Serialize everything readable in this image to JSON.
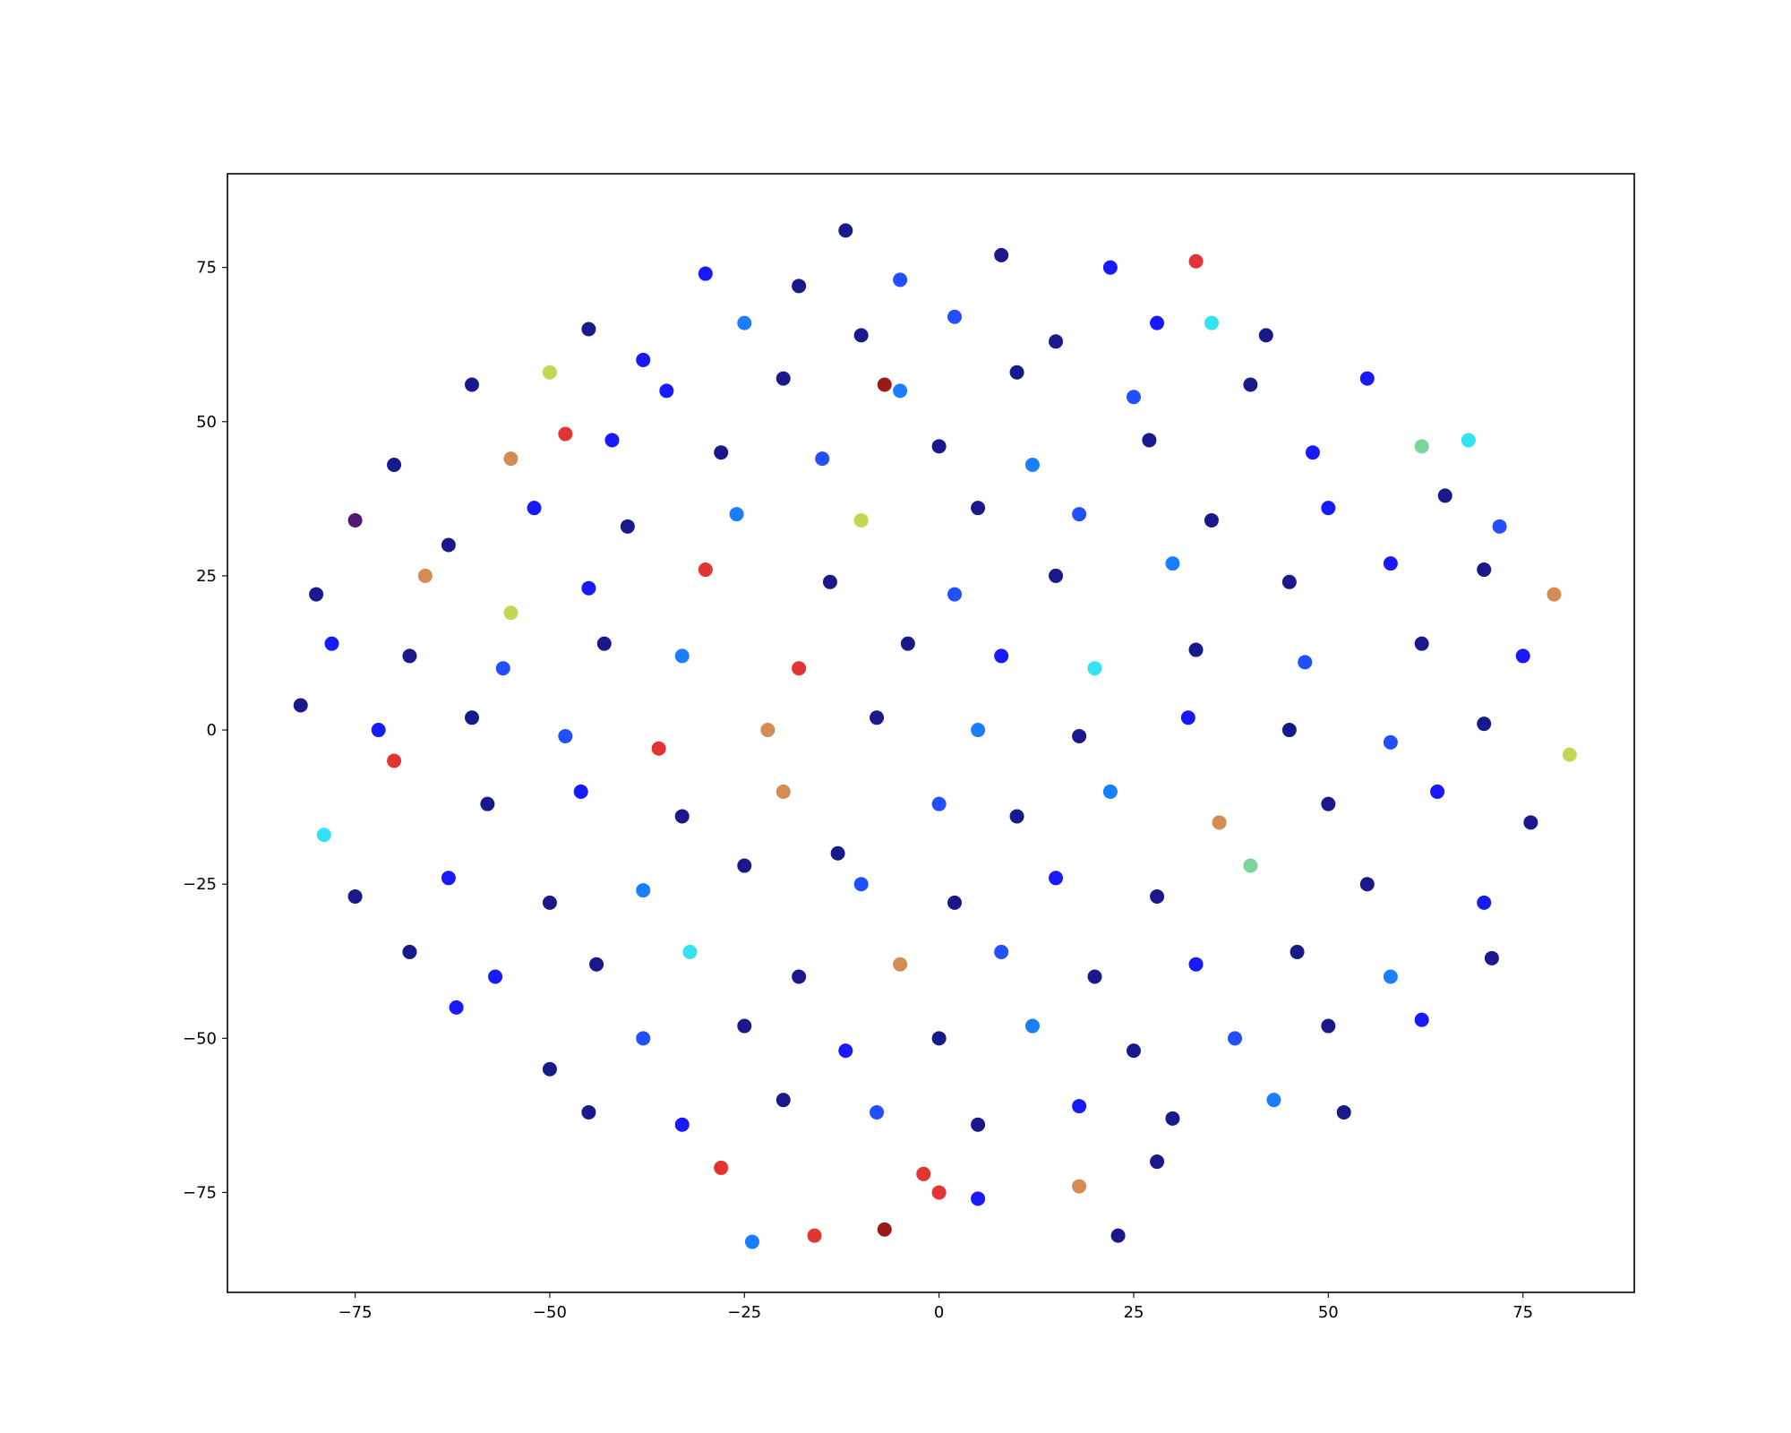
{
  "chart_data": {
    "type": "scatter",
    "x": [
      -12,
      -30,
      -18,
      -5,
      8,
      22,
      33,
      -45,
      -38,
      -25,
      -10,
      2,
      15,
      28,
      42,
      35,
      -60,
      -50,
      -35,
      -20,
      -5,
      10,
      25,
      40,
      55,
      -7,
      -70,
      -55,
      -42,
      -28,
      -15,
      0,
      12,
      27,
      48,
      62,
      68,
      -48,
      -75,
      -63,
      -52,
      -40,
      -26,
      -10,
      5,
      18,
      35,
      50,
      65,
      72,
      -80,
      -66,
      -55,
      -45,
      -30,
      -14,
      2,
      15,
      30,
      45,
      58,
      70,
      79,
      -78,
      -68,
      -56,
      -43,
      -33,
      -18,
      -4,
      8,
      20,
      33,
      47,
      62,
      75,
      -82,
      -72,
      -60,
      -48,
      -36,
      -22,
      -8,
      5,
      18,
      32,
      45,
      58,
      70,
      81,
      -79,
      -70,
      -58,
      -46,
      -33,
      -20,
      -13,
      0,
      10,
      22,
      36,
      50,
      64,
      76,
      -75,
      -63,
      -50,
      -38,
      -25,
      -10,
      2,
      15,
      28,
      40,
      55,
      70,
      -68,
      -57,
      -44,
      -32,
      -18,
      -5,
      8,
      20,
      33,
      46,
      58,
      71,
      -62,
      -50,
      -38,
      -25,
      -12,
      0,
      12,
      25,
      38,
      50,
      62,
      -45,
      -33,
      -20,
      -8,
      5,
      18,
      30,
      43,
      52,
      -28,
      -16,
      -7,
      -2,
      0,
      5,
      18,
      28,
      23,
      -24
    ],
    "values": [
      81,
      74,
      72,
      73,
      77,
      75,
      76,
      65,
      60,
      66,
      64,
      67,
      63,
      66,
      64,
      66,
      56,
      58,
      55,
      57,
      55,
      58,
      54,
      56,
      57,
      56,
      43,
      44,
      47,
      45,
      44,
      46,
      43,
      47,
      45,
      46,
      47,
      48,
      34,
      30,
      36,
      33,
      35,
      34,
      36,
      35,
      34,
      36,
      38,
      33,
      22,
      25,
      19,
      23,
      26,
      24,
      22,
      25,
      27,
      24,
      27,
      26,
      22,
      14,
      12,
      10,
      14,
      12,
      10,
      14,
      12,
      10,
      13,
      11,
      14,
      12,
      4,
      0,
      2,
      -1,
      -3,
      0,
      2,
      0,
      -1,
      2,
      0,
      -2,
      1,
      -4,
      -17,
      -5,
      -12,
      -10,
      -14,
      -10,
      -20,
      -12,
      -14,
      -10,
      -15,
      -12,
      -10,
      -15,
      -27,
      -24,
      -28,
      -26,
      -22,
      -25,
      -28,
      -24,
      -27,
      -22,
      -25,
      -28,
      -36,
      -40,
      -38,
      -36,
      -40,
      -38,
      -36,
      -40,
      -38,
      -36,
      -40,
      -37,
      -45,
      -55,
      -50,
      -48,
      -52,
      -50,
      -48,
      -52,
      -50,
      -48,
      -47,
      -62,
      -64,
      -60,
      -62,
      -64,
      -61,
      -63,
      -60,
      -62,
      -71,
      -82,
      -81,
      -72,
      -75,
      -76,
      -74,
      -70,
      -82,
      -83
    ],
    "colors": [
      "#000080",
      "#0000ff",
      "#000080",
      "#0a3cff",
      "#000080",
      "#0000ff",
      "#e01e1e",
      "#000080",
      "#0000ff",
      "#0070ff",
      "#000080",
      "#0a3cff",
      "#000080",
      "#0000ff",
      "#000080",
      "#1ee0f0",
      "#000080",
      "#c0d040",
      "#0000ff",
      "#000080",
      "#0070ff",
      "#000080",
      "#0a3cff",
      "#000080",
      "#0000ff",
      "#900000",
      "#000080",
      "#d08040",
      "#0000ff",
      "#000080",
      "#0a3cff",
      "#000080",
      "#0070ff",
      "#000080",
      "#0000ff",
      "#70d090",
      "#1ee0f0",
      "#e01e1e",
      "#400060",
      "#000080",
      "#0000ff",
      "#000080",
      "#0070ff",
      "#c0d040",
      "#000080",
      "#0a3cff",
      "#000080",
      "#0000ff",
      "#000080",
      "#0a3cff",
      "#000080",
      "#d08040",
      "#c0d040",
      "#0000ff",
      "#e01e1e",
      "#000080",
      "#0a3cff",
      "#000080",
      "#0070ff",
      "#000080",
      "#0000ff",
      "#000080",
      "#d08040",
      "#0000ff",
      "#000080",
      "#0a3cff",
      "#000080",
      "#0070ff",
      "#e01e1e",
      "#000080",
      "#0000ff",
      "#1ee0f0",
      "#000080",
      "#0a3cff",
      "#000080",
      "#0000ff",
      "#000080",
      "#0000ff",
      "#000080",
      "#0a3cff",
      "#e01e1e",
      "#d08040",
      "#000080",
      "#0070ff",
      "#000080",
      "#0000ff",
      "#000080",
      "#0a3cff",
      "#000080",
      "#c0d040",
      "#1ee0f0",
      "#e01e1e",
      "#000080",
      "#0000ff",
      "#000080",
      "#d08040",
      "#000080",
      "#0a3cff",
      "#000080",
      "#0070ff",
      "#d08040",
      "#000080",
      "#0000ff",
      "#000080",
      "#000080",
      "#0000ff",
      "#000080",
      "#0070ff",
      "#000080",
      "#0a3cff",
      "#000080",
      "#0000ff",
      "#000080",
      "#70d090",
      "#000080",
      "#0000ff",
      "#000080",
      "#0000ff",
      "#000080",
      "#1ee0f0",
      "#000080",
      "#d08040",
      "#0a3cff",
      "#000080",
      "#0000ff",
      "#000080",
      "#0070ff",
      "#000080",
      "#0000ff",
      "#000080",
      "#0a3cff",
      "#000080",
      "#0000ff",
      "#000080",
      "#0070ff",
      "#000080",
      "#0a3cff",
      "#000080",
      "#0000ff",
      "#000080",
      "#0000ff",
      "#000080",
      "#0a3cff",
      "#000080",
      "#0000ff",
      "#000080",
      "#0070ff",
      "#000080",
      "#e01e1e",
      "#e01e1e",
      "#900000",
      "#e01e1e",
      "#e01e1e",
      "#0000ff",
      "#d08040",
      "#000080",
      "#000080",
      "#0070ff"
    ],
    "xlim": [
      -91.4,
      89.3
    ],
    "ylim": [
      -91.2,
      90.2
    ],
    "xticks": [
      {
        "value": -75,
        "label": "−75"
      },
      {
        "value": -50,
        "label": "−50"
      },
      {
        "value": -25,
        "label": "−25"
      },
      0,
      25,
      50,
      75
    ],
    "yticks": [
      {
        "value": -75,
        "label": "−75"
      },
      {
        "value": -50,
        "label": "−50"
      },
      {
        "value": -25,
        "label": "−25"
      },
      0,
      25,
      50,
      75
    ],
    "grid": false
  }
}
